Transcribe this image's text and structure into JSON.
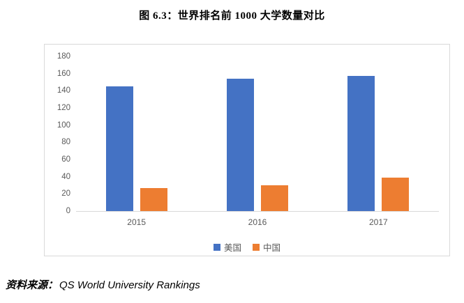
{
  "title": "图 6.3：世界排名前 1000 大学数量对比",
  "source": {
    "prefix": "资料来源：",
    "text": "QS World University Rankings"
  },
  "colors": {
    "us_blue": "#4472C4",
    "china_orange": "#ED7D31",
    "axis_text": "#595959",
    "axis_line": "#D9D9D9",
    "chart_border": "#D9D9D9"
  },
  "chart_data": {
    "type": "bar",
    "title": "图 6.3：世界排名前 1000 大学数量对比",
    "categories": [
      "2015",
      "2016",
      "2017"
    ],
    "series": [
      {
        "id": "us",
        "name": "美国",
        "color": "#4472C4",
        "values": [
          145,
          154,
          157
        ]
      },
      {
        "id": "china",
        "name": "中国",
        "color": "#ED7D31",
        "values": [
          27,
          30,
          39
        ]
      }
    ],
    "xlabel": "",
    "ylabel": "",
    "ylim": [
      0,
      180
    ],
    "yticks": [
      0,
      20,
      40,
      60,
      80,
      100,
      120,
      140,
      160,
      180
    ],
    "grid": false,
    "legend_position": "bottom",
    "plot_background": "#FFFFFF"
  }
}
